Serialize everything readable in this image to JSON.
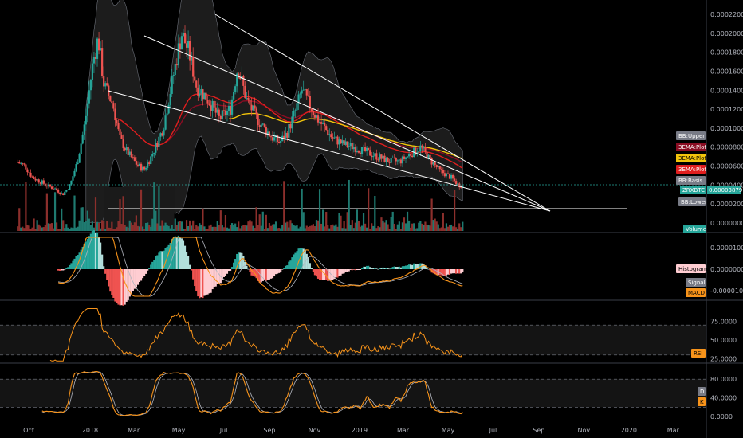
{
  "chart_data": [
    {
      "type": "candlestick",
      "symbol": "ZRXBTC",
      "current_price": "0.00003879",
      "y_ticks": [
        "0.00022000",
        "0.00020000",
        "0.00018000",
        "0.00016000",
        "0.00014000",
        "0.00012000",
        "0.00010000",
        "0.00008000",
        "0.00006000",
        "0.00004000",
        "0.00002000",
        "0.00000000"
      ],
      "x_ticks": [
        "Oct",
        "2018",
        "Mar",
        "May",
        "Jul",
        "Sep",
        "Nov",
        "2019",
        "Mar",
        "May",
        "Jul",
        "Sep",
        "Nov",
        "2020",
        "Mar"
      ],
      "close_series": [
        [
          "2017-09-25",
          6.4e-05
        ],
        [
          "2017-10-05",
          6e-05
        ],
        [
          "2017-10-15",
          4.8e-05
        ],
        [
          "2017-10-25",
          4.4e-05
        ],
        [
          "2017-11-05",
          3.9e-05
        ],
        [
          "2017-11-15",
          3.6e-05
        ],
        [
          "2017-11-25",
          3e-05
        ],
        [
          "2017-12-05",
          4e-05
        ],
        [
          "2017-12-15",
          6.5e-05
        ],
        [
          "2017-12-25",
          0.000105
        ],
        [
          "2018-01-05",
          0.00017
        ],
        [
          "2018-01-12",
          0.000195
        ],
        [
          "2018-01-20",
          0.000145
        ],
        [
          "2018-02-01",
          0.000125
        ],
        [
          "2018-02-10",
          9e-05
        ],
        [
          "2018-02-20",
          7.5e-05
        ],
        [
          "2018-03-05",
          6.2e-05
        ],
        [
          "2018-03-15",
          5.6e-05
        ],
        [
          "2018-03-25",
          7e-05
        ],
        [
          "2018-04-10",
          0.0001
        ],
        [
          "2018-04-25",
          0.00016
        ],
        [
          "2018-05-05",
          0.0002
        ],
        [
          "2018-05-15",
          0.00018
        ],
        [
          "2018-05-25",
          0.000145
        ],
        [
          "2018-06-10",
          0.00013
        ],
        [
          "2018-06-25",
          0.00011
        ],
        [
          "2018-07-10",
          0.00012
        ],
        [
          "2018-07-20",
          0.000165
        ],
        [
          "2018-08-01",
          0.00013
        ],
        [
          "2018-08-15",
          0.00011
        ],
        [
          "2018-08-25",
          0.0001
        ],
        [
          "2018-09-05",
          9e-05
        ],
        [
          "2018-09-15",
          8.5e-05
        ],
        [
          "2018-09-25",
          9.5e-05
        ],
        [
          "2018-10-05",
          0.000115
        ],
        [
          "2018-10-15",
          0.00014
        ],
        [
          "2018-10-25",
          0.000125
        ],
        [
          "2018-11-05",
          0.00011
        ],
        [
          "2018-11-15",
          0.0001
        ],
        [
          "2018-11-25",
          9e-05
        ],
        [
          "2018-12-10",
          8.3e-05
        ],
        [
          "2018-12-25",
          8e-05
        ],
        [
          "2019-01-10",
          7.5e-05
        ],
        [
          "2019-01-25",
          7e-05
        ],
        [
          "2019-02-10",
          6.5e-05
        ],
        [
          "2019-02-25",
          6.5e-05
        ],
        [
          "2019-03-10",
          7.2e-05
        ],
        [
          "2019-03-25",
          8e-05
        ],
        [
          "2019-04-05",
          6.8e-05
        ],
        [
          "2019-04-20",
          5.5e-05
        ],
        [
          "2019-05-05",
          4.8e-05
        ],
        [
          "2019-05-15",
          4e-05
        ],
        [
          "2019-05-22",
          3.88e-05
        ]
      ]
    },
    {
      "type": "bar",
      "name": "Volume",
      "label": "Volume"
    },
    {
      "type": "histogram",
      "name": "MACD",
      "y_ticks": [
        "0.00001000",
        "0.00000000",
        "-0.00001000"
      ],
      "labels": [
        "Histogram",
        "Signal",
        "MACD"
      ]
    },
    {
      "type": "line",
      "name": "RSI",
      "y_ticks": [
        "75.0000",
        "50.0000",
        "25.0000"
      ],
      "overbought": 70,
      "oversold": 30,
      "label": "RSI",
      "ylim": [
        20,
        95
      ]
    },
    {
      "type": "line",
      "name": "Stoch",
      "y_ticks": [
        "80.0000",
        "40.0000",
        "0.0000"
      ],
      "labels": [
        "D",
        "K"
      ],
      "ylim": [
        0,
        100
      ]
    }
  ],
  "tags": {
    "bb_upper": "BB:Upper",
    "ema_plot_1": "3EMA:Plot",
    "ema_plot_2": "3EMA:Plot",
    "ema_plot_3": "3EMA:Plot",
    "bb_basis": "BB:Basis",
    "symbol": "ZRXBTC",
    "price": "0.00003879",
    "bb_lower": "BB:Lower",
    "volume": "Volume",
    "histogram": "Histogram",
    "signal": "Signal",
    "macd": "MACD",
    "rsi": "RSI",
    "stoch_d": "D",
    "stoch_k": "K"
  },
  "colors": {
    "background": "#000000",
    "up": "#26a69a",
    "down": "#ef5350",
    "bb_fill": "#333333",
    "ema_red": "#e01e1e",
    "ema_yellow": "#f2c40b",
    "ema_darkred": "#8b0d23",
    "orange": "#f7931a",
    "white": "#ffffff"
  }
}
